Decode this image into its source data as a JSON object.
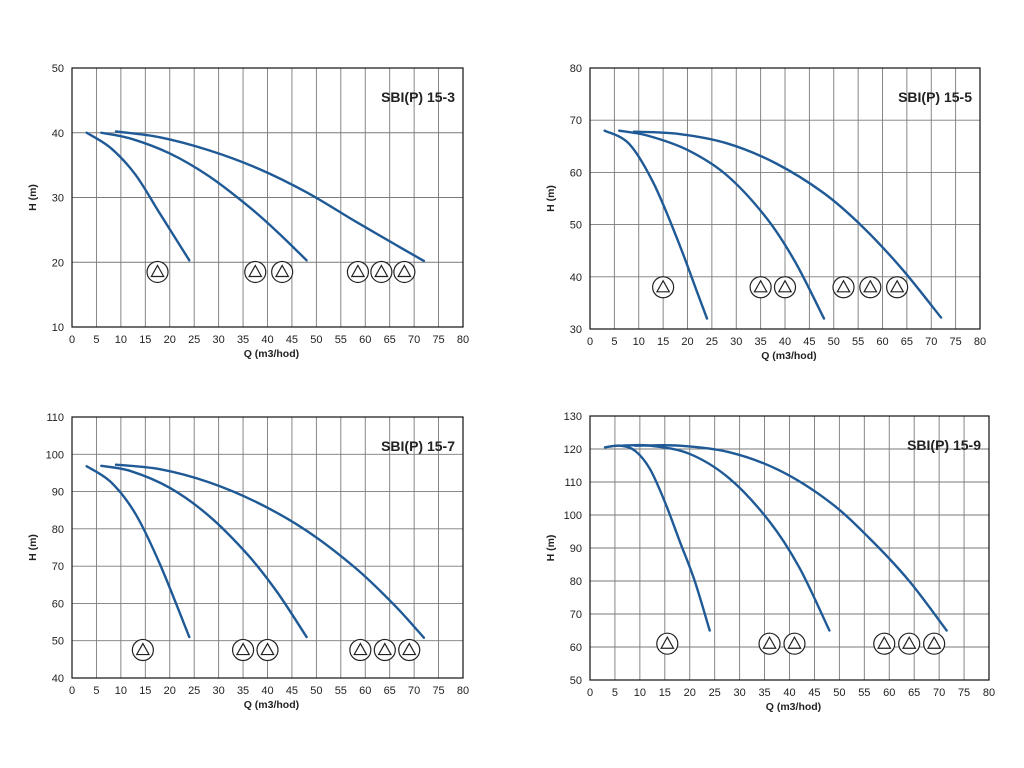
{
  "colors": {
    "curve": "#1f5a96",
    "grid": "#7a7a7a",
    "frame": "#111111"
  },
  "icons": {
    "stage_badge": "circled-triangle-pump-stage-icon"
  },
  "chart_data": [
    {
      "type": "line",
      "title": "SBI(P) 15-3",
      "xlabel": "Q (m3/hod)",
      "ylabel": "H (m)",
      "xlim": [
        0,
        80
      ],
      "ylim": [
        10,
        50
      ],
      "x_ticks": [
        "0",
        "5",
        "10",
        "15",
        "20",
        "25",
        "30",
        "35",
        "40",
        "45",
        "50",
        "55",
        "60",
        "65",
        "70",
        "75",
        "80"
      ],
      "y_ticks": [
        "10",
        "20",
        "30",
        "40",
        "50"
      ],
      "grid": true,
      "series": [
        {
          "x": [
            3,
            8,
            13,
            18,
            24
          ],
          "y": [
            40,
            37.6,
            33.5,
            27.5,
            20.3
          ]
        },
        {
          "x": [
            6,
            12,
            20,
            28,
            36,
            42,
            48
          ],
          "y": [
            40,
            39.1,
            36.8,
            33.3,
            28.7,
            24.7,
            20.3
          ]
        },
        {
          "x": [
            9,
            18,
            28,
            38,
            48,
            58,
            66,
            72
          ],
          "y": [
            40.2,
            39.3,
            37.3,
            34.5,
            30.8,
            26.3,
            22.8,
            20.2
          ]
        }
      ],
      "badges": [
        {
          "x": 17.5,
          "y": 18.5,
          "count": 1
        },
        {
          "x": 37.5,
          "y": 18.5,
          "count": 1
        },
        {
          "x": 43,
          "y": 18.5,
          "count": 1
        },
        {
          "x": 58.5,
          "y": 18.5,
          "count": 1
        },
        {
          "x": 63.3,
          "y": 18.5,
          "count": 1
        },
        {
          "x": 68,
          "y": 18.5,
          "count": 1
        }
      ]
    },
    {
      "type": "line",
      "title": "SBI(P) 15-5",
      "xlabel": "Q (m3/hod)",
      "ylabel": "H (m)",
      "xlim": [
        0,
        80
      ],
      "ylim": [
        30,
        80
      ],
      "x_ticks": [
        "0",
        "5",
        "10",
        "15",
        "20",
        "25",
        "30",
        "35",
        "40",
        "45",
        "50",
        "55",
        "60",
        "65",
        "70",
        "75",
        "80"
      ],
      "y_ticks": [
        "30",
        "40",
        "50",
        "60",
        "70",
        "80"
      ],
      "grid": true,
      "series": [
        {
          "x": [
            3,
            8,
            13,
            18,
            22,
            24
          ],
          "y": [
            68,
            65.5,
            58,
            47,
            37,
            32
          ]
        },
        {
          "x": [
            6,
            12,
            20,
            28,
            36,
            42,
            48
          ],
          "y": [
            68,
            67,
            64.3,
            59.5,
            51.5,
            43,
            32
          ]
        },
        {
          "x": [
            9,
            18,
            28,
            38,
            48,
            56,
            64,
            72
          ],
          "y": [
            67.8,
            67.4,
            65.6,
            61.8,
            56,
            49.5,
            41.5,
            32.2
          ]
        }
      ],
      "badges": [
        {
          "x": 15,
          "y": 38,
          "count": 1
        },
        {
          "x": 35,
          "y": 38,
          "count": 1
        },
        {
          "x": 40,
          "y": 38,
          "count": 1
        },
        {
          "x": 52,
          "y": 38,
          "count": 1
        },
        {
          "x": 57.5,
          "y": 38,
          "count": 1
        },
        {
          "x": 63,
          "y": 38,
          "count": 1
        }
      ]
    },
    {
      "type": "line",
      "title": "SBI(P) 15-7",
      "xlabel": "Q (m3/hod)",
      "ylabel": "H (m)",
      "xlim": [
        0,
        80
      ],
      "ylim": [
        40,
        110
      ],
      "x_ticks": [
        "0",
        "5",
        "10",
        "15",
        "20",
        "25",
        "30",
        "35",
        "40",
        "45",
        "50",
        "55",
        "60",
        "65",
        "70",
        "75",
        "80"
      ],
      "y_ticks": [
        "40",
        "50",
        "60",
        "70",
        "80",
        "90",
        "100",
        "110"
      ],
      "grid": true,
      "series": [
        {
          "x": [
            3,
            8,
            13,
            18,
            24
          ],
          "y": [
            96.8,
            92.5,
            84,
            70.5,
            51
          ]
        },
        {
          "x": [
            6,
            12,
            20,
            28,
            36,
            42,
            48
          ],
          "y": [
            96.9,
            95.5,
            91,
            83.5,
            73,
            63,
            51
          ]
        },
        {
          "x": [
            9,
            18,
            28,
            38,
            48,
            58,
            66,
            72
          ],
          "y": [
            97.2,
            96,
            92.5,
            87,
            79.5,
            69.5,
            59.5,
            50.8
          ]
        }
      ],
      "badges": [
        {
          "x": 14.5,
          "y": 47.5,
          "count": 1
        },
        {
          "x": 35,
          "y": 47.5,
          "count": 1
        },
        {
          "x": 40,
          "y": 47.5,
          "count": 1
        },
        {
          "x": 59,
          "y": 47.5,
          "count": 1
        },
        {
          "x": 64,
          "y": 47.5,
          "count": 1
        },
        {
          "x": 69,
          "y": 47.5,
          "count": 1
        }
      ]
    },
    {
      "type": "line",
      "title": "SBI(P) 15-9",
      "xlabel": "Q (m3/hod)",
      "ylabel": "H (m)",
      "xlim": [
        0,
        80
      ],
      "ylim": [
        50,
        130
      ],
      "x_ticks": [
        "0",
        "5",
        "10",
        "15",
        "20",
        "25",
        "30",
        "35",
        "40",
        "45",
        "50",
        "55",
        "60",
        "65",
        "70",
        "75",
        "80"
      ],
      "y_ticks": [
        "50",
        "60",
        "70",
        "80",
        "90",
        "100",
        "110",
        "120",
        "130"
      ],
      "grid": true,
      "series": [
        {
          "x": [
            3,
            6,
            9,
            12,
            15,
            18,
            21,
            24
          ],
          "y": [
            120.5,
            121,
            119.5,
            114,
            104,
            92,
            80,
            65
          ]
        },
        {
          "x": [
            6,
            12,
            20,
            28,
            36,
            42,
            48
          ],
          "y": [
            121,
            121,
            118.5,
            111,
            98,
            84,
            65
          ]
        },
        {
          "x": [
            9,
            18,
            28,
            38,
            48,
            56,
            64,
            71.5
          ],
          "y": [
            121,
            121,
            119,
            113.5,
            104,
            93,
            80,
            65
          ]
        }
      ],
      "badges": [
        {
          "x": 15.5,
          "y": 61,
          "count": 1
        },
        {
          "x": 36,
          "y": 61,
          "count": 1
        },
        {
          "x": 41,
          "y": 61,
          "count": 1
        },
        {
          "x": 59,
          "y": 61,
          "count": 1
        },
        {
          "x": 64,
          "y": 61,
          "count": 1
        },
        {
          "x": 69,
          "y": 61,
          "count": 1
        }
      ]
    }
  ]
}
